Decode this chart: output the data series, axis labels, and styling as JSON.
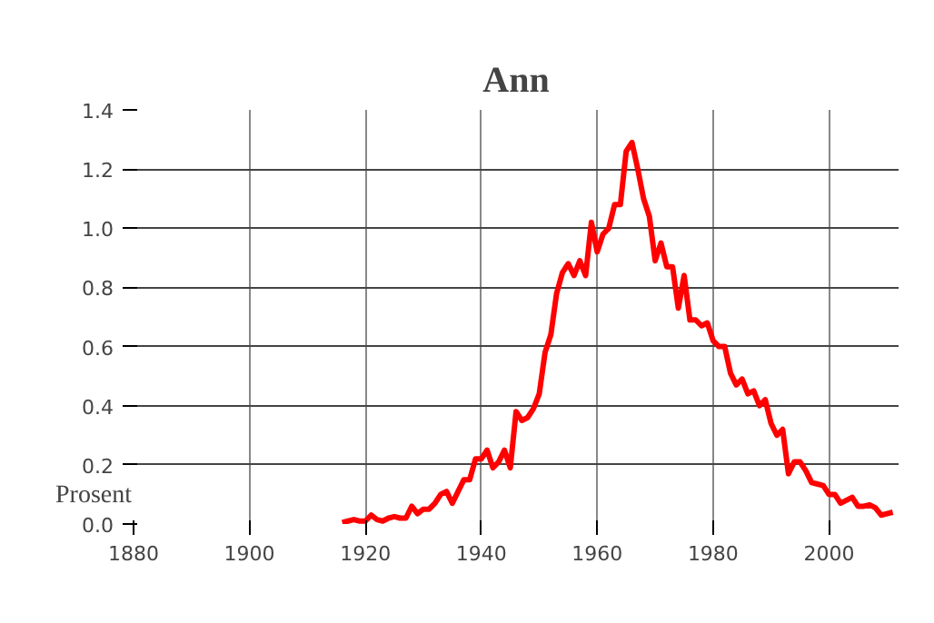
{
  "chart_data": {
    "type": "line",
    "title": "Ann",
    "ylabel": "Prosent",
    "xlim": [
      1880,
      2012
    ],
    "xticks": [
      1880,
      1900,
      1920,
      1940,
      1960,
      1980,
      2000
    ],
    "ylim": [
      0,
      1.4
    ],
    "yticks": [
      {
        "value": 0,
        "label": "0.0"
      },
      {
        "value": 0.2,
        "label": "0.2"
      },
      {
        "value": 0.4,
        "label": "0.4"
      },
      {
        "value": 0.6,
        "label": "0.6"
      },
      {
        "value": 0.8,
        "label": "0.8"
      },
      {
        "value": 1.0,
        "label": "1.0"
      },
      {
        "value": 1.2,
        "label": "1.2"
      },
      {
        "value": 1.4,
        "label": "1.4"
      }
    ],
    "grid": true,
    "marker": "none",
    "line_style": "solid",
    "x": [
      1916,
      1917,
      1918,
      1919,
      1920,
      1921,
      1922,
      1923,
      1924,
      1925,
      1926,
      1927,
      1928,
      1929,
      1930,
      1931,
      1932,
      1933,
      1934,
      1935,
      1936,
      1937,
      1938,
      1939,
      1940,
      1941,
      1942,
      1943,
      1944,
      1945,
      1946,
      1947,
      1948,
      1949,
      1950,
      1951,
      1952,
      1953,
      1954,
      1955,
      1956,
      1957,
      1958,
      1959,
      1960,
      1961,
      1962,
      1963,
      1964,
      1965,
      1966,
      1967,
      1968,
      1969,
      1970,
      1971,
      1972,
      1973,
      1974,
      1975,
      1976,
      1977,
      1978,
      1979,
      1980,
      1981,
      1982,
      1983,
      1984,
      1985,
      1986,
      1987,
      1988,
      1989,
      1990,
      1991,
      1992,
      1993,
      1994,
      1995,
      1996,
      1997,
      1998,
      1999,
      2000,
      2001,
      2002,
      2003,
      2004,
      2005,
      2006,
      2007,
      2008,
      2009,
      2010,
      2011
    ],
    "series": [
      {
        "color": "#ff0000",
        "values": [
          0.005,
          0.01,
          0.015,
          0.01,
          0.01,
          0.03,
          0.015,
          0.01,
          0.02,
          0.025,
          0.02,
          0.02,
          0.06,
          0.035,
          0.05,
          0.05,
          0.07,
          0.1,
          0.11,
          0.07,
          0.11,
          0.15,
          0.15,
          0.22,
          0.22,
          0.25,
          0.19,
          0.21,
          0.25,
          0.19,
          0.38,
          0.35,
          0.36,
          0.39,
          0.44,
          0.58,
          0.64,
          0.78,
          0.85,
          0.88,
          0.84,
          0.89,
          0.84,
          1.02,
          0.92,
          0.98,
          1.0,
          1.08,
          1.08,
          1.26,
          1.29,
          1.2,
          1.1,
          1.04,
          0.89,
          0.95,
          0.87,
          0.87,
          0.73,
          0.84,
          0.69,
          0.69,
          0.67,
          0.68,
          0.62,
          0.6,
          0.6,
          0.51,
          0.47,
          0.49,
          0.44,
          0.45,
          0.4,
          0.42,
          0.34,
          0.3,
          0.32,
          0.17,
          0.21,
          0.21,
          0.18,
          0.14,
          0.135,
          0.13,
          0.1,
          0.1,
          0.07,
          0.08,
          0.09,
          0.06,
          0.06,
          0.065,
          0.055,
          0.03,
          0.035,
          0.04
        ]
      }
    ]
  }
}
